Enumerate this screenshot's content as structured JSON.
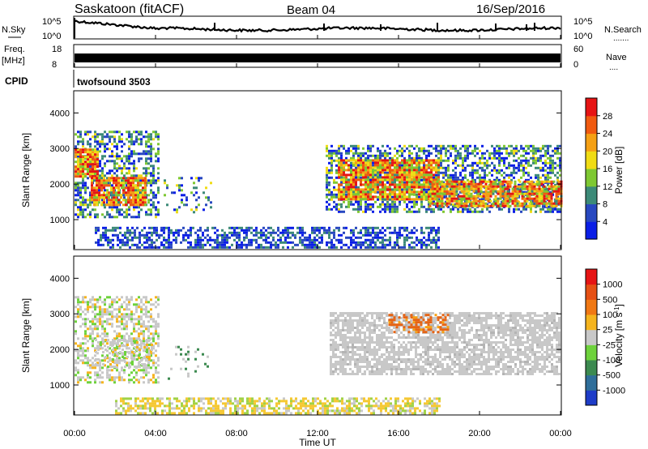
{
  "header": {
    "station": "Saskatoon (fitACF)",
    "beam": "Beam 04",
    "date": "16/Sep/2016"
  },
  "summary_panels": {
    "left_labels": {
      "nsky": "N.Sky",
      "freq_top": "Freq.",
      "freq_unit": "[MHz]",
      "cpid": "CPID"
    },
    "right_labels": {
      "nsearch": "N.Search",
      "nsearch_dots": ".......",
      "nave": "Nave",
      "nave_dots": "...."
    },
    "nsky_ticks": [
      "10^5",
      "10^0"
    ],
    "nsearch_ticks": [
      "10^5",
      "10^0"
    ],
    "freq_ticks": [
      "18",
      "8"
    ],
    "nave_ticks": [
      "60",
      "0"
    ],
    "cpid_text": "twofsound 3503"
  },
  "time_axis": {
    "label": "Time UT",
    "ticks": [
      "00:00",
      "04:00",
      "08:00",
      "12:00",
      "16:00",
      "20:00",
      "00:00"
    ]
  },
  "range_axis": {
    "label": "Slant Range [km]",
    "ticks": [
      "1000",
      "2000",
      "3000",
      "4000"
    ]
  },
  "power_colorbar": {
    "label": "Power [dB]",
    "ticks": [
      "4",
      "8",
      "12",
      "16",
      "20",
      "24",
      "28"
    ],
    "colors": [
      "#0a1ee6",
      "#2848c0",
      "#3c8a78",
      "#7ec832",
      "#f0dc14",
      "#f5a014",
      "#f05a10",
      "#e61414"
    ]
  },
  "velocity_colorbar": {
    "label": "Velocity [m s",
    "label_sup": "-1",
    "label_end": "]",
    "ticks": [
      "1000",
      "500",
      "100",
      "25",
      "-25",
      "-100",
      "-500",
      "-1000"
    ],
    "colors": [
      "#1e3cc8",
      "#2f6e9a",
      "#3c8a50",
      "#6ed23c",
      "#c8c8c8",
      "#f5b41e",
      "#f07814",
      "#e65014",
      "#e61414"
    ]
  },
  "chart_data": [
    {
      "type": "heatmap",
      "title": "Power",
      "xlabel": "Time UT",
      "ylabel": "Slant Range [km]",
      "x_range_hours": [
        0,
        24
      ],
      "ylim": [
        180,
        4600
      ],
      "colorbar_label": "Power [dB]",
      "color_range": [
        0,
        32
      ],
      "grid": false,
      "regions": [
        {
          "t": [
            0.0,
            4.2
          ],
          "r": [
            1100,
            3500
          ],
          "density": 0.5
        },
        {
          "t": [
            0.0,
            1.2
          ],
          "r": [
            2200,
            3000
          ],
          "density": 0.9
        },
        {
          "t": [
            0.8,
            3.5
          ],
          "r": [
            1400,
            2200
          ],
          "density": 0.85
        },
        {
          "t": [
            4.4,
            6.7
          ],
          "r": [
            1200,
            2200
          ],
          "density": 0.18
        },
        {
          "t": [
            1.0,
            18.0
          ],
          "r": [
            200,
            800
          ],
          "density": 0.55
        },
        {
          "t": [
            12.4,
            24.0
          ],
          "r": [
            1250,
            3100
          ],
          "density": 0.55
        },
        {
          "t": [
            13.0,
            18.0
          ],
          "r": [
            1600,
            2700
          ],
          "density": 0.85
        },
        {
          "t": [
            17.5,
            24.0
          ],
          "r": [
            1400,
            2100
          ],
          "density": 0.8
        }
      ]
    },
    {
      "type": "heatmap",
      "title": "Velocity",
      "xlabel": "Time UT",
      "ylabel": "Slant Range [km]",
      "x_range_hours": [
        0,
        24
      ],
      "ylim": [
        180,
        4600
      ],
      "colorbar_label": "Velocity [m s-1]",
      "color_range": [
        -1000,
        1000
      ],
      "grid": false,
      "regions": [
        {
          "t": [
            0.0,
            4.2
          ],
          "r": [
            1100,
            3500
          ],
          "density": 0.5
        },
        {
          "t": [
            1.0,
            3.8
          ],
          "r": [
            1500,
            2300
          ],
          "density": 0.4
        },
        {
          "t": [
            4.6,
            6.6
          ],
          "r": [
            1200,
            2100
          ],
          "density": 0.12
        },
        {
          "t": [
            2.0,
            18.0
          ],
          "r": [
            200,
            650
          ],
          "density": 0.6
        },
        {
          "t": [
            12.6,
            24.0
          ],
          "r": [
            1300,
            3050
          ],
          "density": 0.7
        },
        {
          "t": [
            15.5,
            18.5
          ],
          "r": [
            2500,
            3000
          ],
          "density": 0.45
        }
      ]
    }
  ]
}
